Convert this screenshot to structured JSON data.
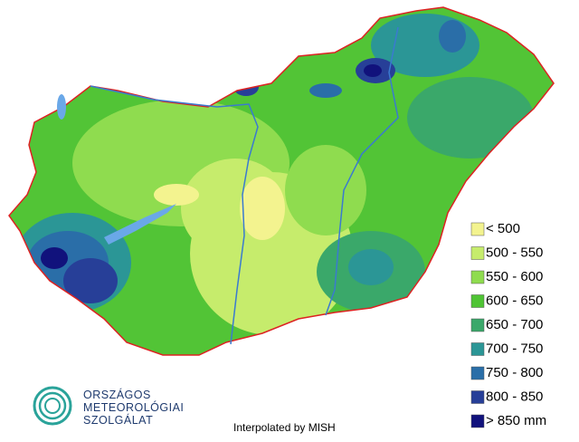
{
  "legend": {
    "items": [
      {
        "label": "< 500",
        "color": "#f3f38f"
      },
      {
        "label": "500 - 550",
        "color": "#c6ec6c"
      },
      {
        "label": "550 - 600",
        "color": "#8fdc4f"
      },
      {
        "label": "600 - 650",
        "color": "#4fc434"
      },
      {
        "label": "650 - 700",
        "color": "#3aa86a"
      },
      {
        "label": "700 - 750",
        "color": "#2b9696"
      },
      {
        "label": "750 - 800",
        "color": "#2a6ea8"
      },
      {
        "label": "800 - 850",
        "color": "#273f98"
      },
      {
        "label": "> 850 mm",
        "color": "#11127c"
      }
    ]
  },
  "footer": {
    "credit": "Interpolated by MISH"
  },
  "logo": {
    "lines": [
      "ORSZÁGOS",
      "METEOROLÓGIAI",
      "SZOLGÁLAT"
    ]
  }
}
